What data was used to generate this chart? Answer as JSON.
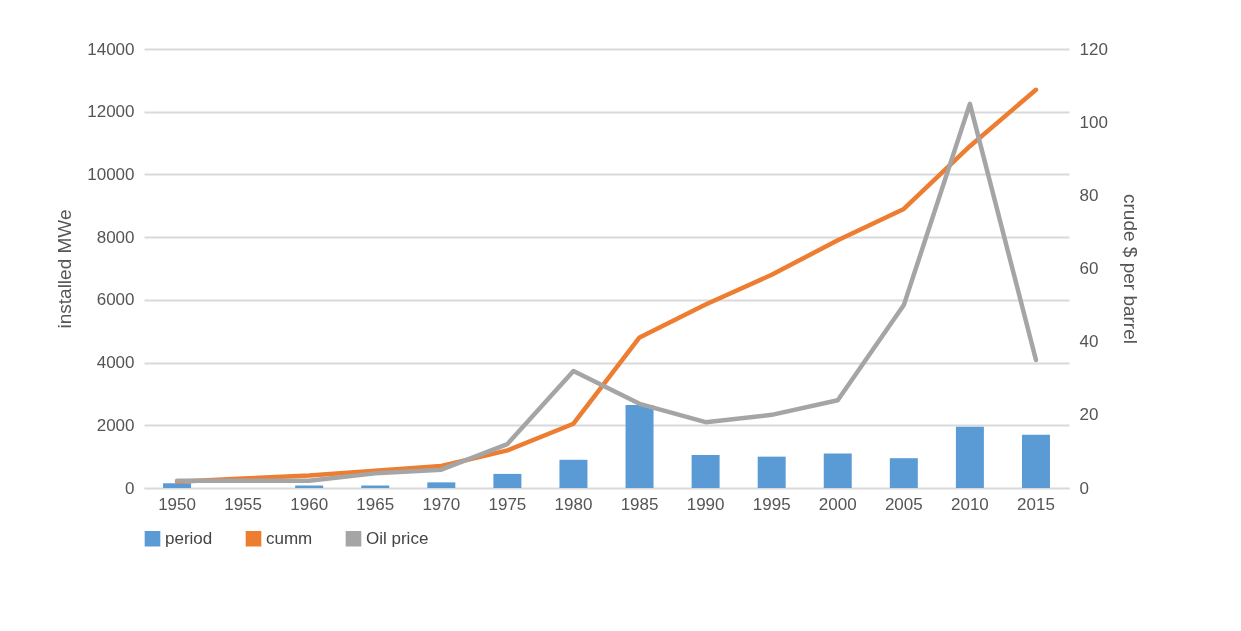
{
  "chart_data": {
    "type": "bar",
    "xlabel": null,
    "ylabel": "installed MWe",
    "y2label": "crude $ per barrel",
    "categories": [
      "1950",
      "1955",
      "1960",
      "1965",
      "1970",
      "1975",
      "1980",
      "1985",
      "1990",
      "1995",
      "2000",
      "2005",
      "2010",
      "2015"
    ],
    "series": [
      {
        "name": "period",
        "color": "#5b9bd5",
        "values": [
          150,
          0,
          80,
          80,
          180,
          450,
          900,
          2650,
          1050,
          1000,
          1100,
          950,
          1950,
          1700
        ]
      },
      {
        "name": "cumm",
        "type": "line",
        "color": "#ed7d31",
        "values": [
          200,
          300,
          400,
          550,
          700,
          1200,
          2050,
          4800,
          5850,
          6800,
          7900,
          8900,
          10900,
          12700
        ]
      },
      {
        "name": "Oil price",
        "type": "line",
        "axis": "y2",
        "color": "#a5a5a5",
        "values": [
          2,
          2,
          2,
          4,
          5,
          12,
          32,
          23,
          18,
          20,
          24,
          50,
          105,
          35
        ]
      }
    ],
    "ylim": [
      0,
      14000
    ],
    "yticks": [
      0,
      2000,
      4000,
      6000,
      8000,
      10000,
      12000,
      14000
    ],
    "y2lim": [
      0,
      120
    ],
    "y2ticks": [
      0,
      20,
      40,
      60,
      80,
      100,
      120
    ],
    "grid": "y",
    "legend": "bottom"
  }
}
